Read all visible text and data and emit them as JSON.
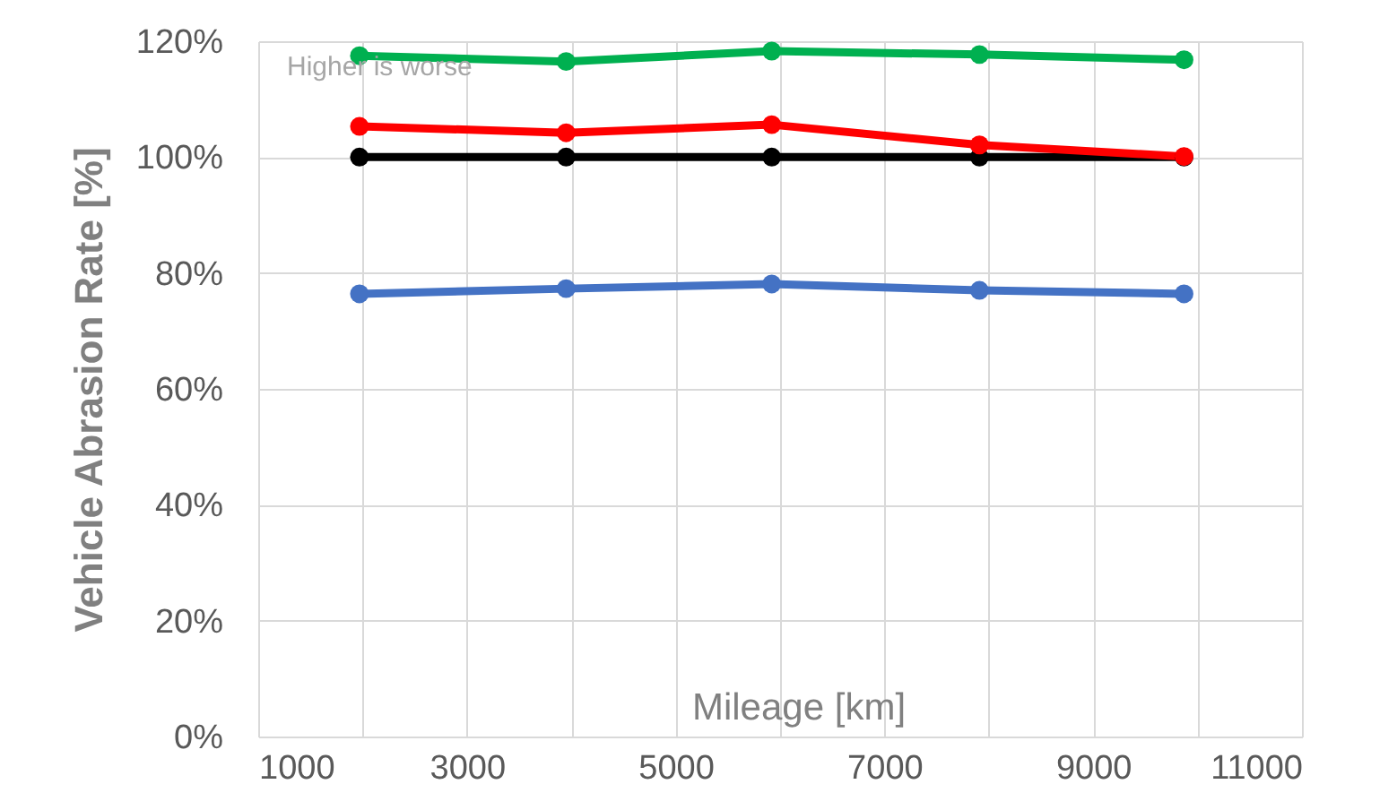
{
  "chart_data": {
    "type": "line",
    "ylabel": "Vehicle Abrasion Rate [%]",
    "xlabel": "Mileage [km]",
    "annotations": [
      "Higher is worse"
    ],
    "x": [
      1970,
      3950,
      5920,
      7910,
      9870
    ],
    "series": [
      {
        "color": "#00b050",
        "values": [
          117.5,
          116.5,
          118.3,
          117.7,
          116.8
        ]
      },
      {
        "color": "#000000",
        "values": [
          100,
          100,
          100,
          100,
          100
        ]
      },
      {
        "color": "#ff0000",
        "values": [
          105.3,
          104.2,
          105.6,
          102.1,
          100.1
        ]
      },
      {
        "color": "#4472c4",
        "values": [
          76.4,
          77.3,
          78.1,
          77.0,
          76.4
        ]
      }
    ],
    "xlim": [
      1000,
      11000
    ],
    "xticks": [
      1000,
      {
        "value": 2000,
        "label": null
      },
      3000,
      {
        "value": 4000,
        "label": null
      },
      5000,
      {
        "value": 6000,
        "label": null
      },
      7000,
      {
        "value": 8000,
        "label": null
      },
      9000,
      {
        "value": 10000,
        "label": null
      },
      11000
    ],
    "ylim": [
      0,
      120
    ],
    "yticks": [
      {
        "value": 0,
        "label": "0%"
      },
      {
        "value": 20,
        "label": "20%"
      },
      {
        "value": 40,
        "label": "40%"
      },
      {
        "value": 60,
        "label": "60%"
      },
      {
        "value": 80,
        "label": "80%"
      },
      {
        "value": 100,
        "label": "100%"
      },
      {
        "value": 120,
        "label": "120%"
      }
    ],
    "grid": true,
    "marker": "circle",
    "line_style": "solid",
    "legend": false
  }
}
